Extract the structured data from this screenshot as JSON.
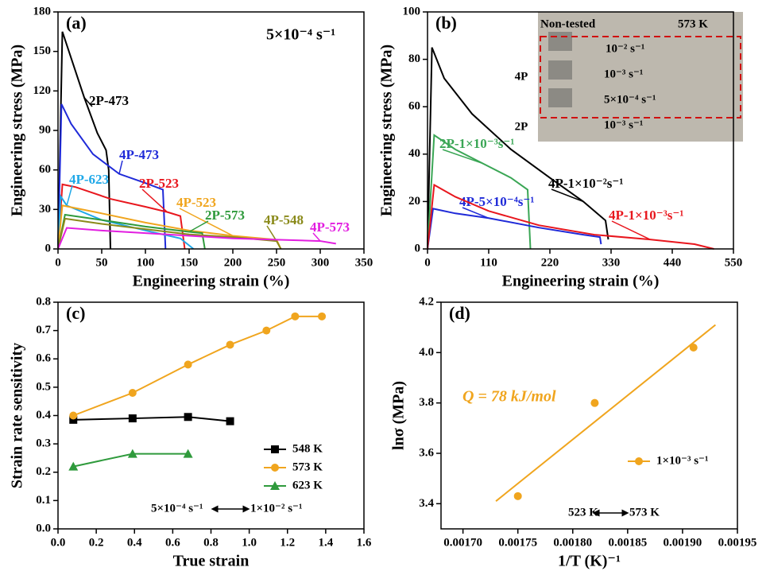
{
  "chart_data": [
    {
      "type": "line",
      "label": "(a)",
      "annotation": "5×10⁻⁴ s⁻¹",
      "x_label": "Engineering strain (%)",
      "y_label": "Engineering stress (MPa)",
      "xlim": [
        0,
        350
      ],
      "xticks": [
        0,
        50,
        100,
        150,
        200,
        250,
        300,
        350
      ],
      "ylim": [
        0,
        180
      ],
      "yticks": [
        0,
        30,
        60,
        90,
        120,
        150,
        180
      ],
      "series": [
        {
          "name": "2P-473",
          "color": "#000000",
          "x": [
            0,
            5,
            15,
            30,
            45,
            55,
            58,
            60
          ],
          "values": [
            0,
            165,
            145,
            115,
            88,
            75,
            60,
            0
          ]
        },
        {
          "name": "4P-473",
          "color": "#1f2ad8",
          "x": [
            0,
            4,
            15,
            40,
            70,
            100,
            120,
            123
          ],
          "values": [
            0,
            110,
            95,
            72,
            57,
            50,
            45,
            0
          ]
        },
        {
          "name": "2P-523",
          "color": "#e8161d",
          "x": [
            0,
            5,
            20,
            60,
            100,
            125,
            140,
            145
          ],
          "values": [
            0,
            49,
            47,
            38,
            32,
            28,
            25,
            0
          ]
        },
        {
          "name": "4P-623",
          "color": "#1fa8e8",
          "x": [
            0,
            3,
            10,
            50,
            100,
            140,
            155
          ],
          "values": [
            0,
            40,
            33,
            22,
            14,
            8,
            0
          ]
        },
        {
          "name": "4P-523",
          "color": "#f0a51e",
          "x": [
            0,
            5,
            50,
            100,
            150,
            200,
            250,
            255
          ],
          "values": [
            0,
            33,
            27,
            20,
            14,
            10,
            7,
            0
          ]
        },
        {
          "name": "2P-573",
          "color": "#2f9a3c",
          "x": [
            0,
            8,
            50,
            100,
            150,
            165,
            168
          ],
          "values": [
            0,
            26,
            22,
            17,
            13,
            12,
            0
          ]
        },
        {
          "name": "4P-548",
          "color": "#8a8a1a",
          "x": [
            0,
            8,
            50,
            100,
            150,
            200,
            250,
            255
          ],
          "values": [
            0,
            23,
            19,
            15,
            11,
            9,
            6,
            0
          ]
        },
        {
          "name": "4P-573",
          "color": "#e21ee0",
          "x": [
            0,
            10,
            50,
            100,
            200,
            300,
            318
          ],
          "values": [
            0,
            16,
            14,
            12,
            8,
            6,
            4
          ]
        }
      ]
    },
    {
      "type": "line",
      "label": "(b)",
      "x_label": "Engineering strain (%)",
      "y_label": "Engineering stress (MPa)",
      "xlim": [
        0,
        550
      ],
      "xticks": [
        0,
        110,
        220,
        330,
        440,
        550
      ],
      "ylim": [
        0,
        100
      ],
      "yticks": [
        0,
        20,
        40,
        60,
        80,
        100
      ],
      "inset_labels": [
        "Non-tested",
        "573 K",
        "10⁻² s⁻¹",
        "10⁻³ s⁻¹",
        "5×10⁻⁴ s⁻¹",
        "10⁻³ s⁻¹",
        "4P",
        "2P"
      ],
      "series": [
        {
          "name": "4P-1×10⁻²s⁻¹",
          "color": "#000000",
          "x": [
            0,
            8,
            30,
            80,
            150,
            220,
            280,
            320,
            325
          ],
          "values": [
            0,
            85,
            72,
            57,
            42,
            30,
            20,
            12,
            4
          ]
        },
        {
          "name": "2P-1×10⁻³s⁻¹",
          "color": "#3aa655",
          "x": [
            0,
            12,
            50,
            100,
            150,
            180,
            185
          ],
          "values": [
            0,
            48,
            42,
            36,
            30,
            25,
            0
          ]
        },
        {
          "name": "4P-5×10⁻⁴s⁻¹",
          "color": "#1f2ad8",
          "x": [
            0,
            10,
            50,
            110,
            200,
            280,
            310,
            312
          ],
          "values": [
            0,
            17,
            15,
            13,
            9,
            6,
            5,
            2
          ]
        },
        {
          "name": "4P-1×10⁻³s⁻¹",
          "color": "#e8161d",
          "x": [
            0,
            12,
            50,
            110,
            200,
            300,
            400,
            480,
            515
          ],
          "values": [
            0,
            27,
            22,
            16,
            10,
            6,
            4,
            2,
            0
          ]
        }
      ]
    },
    {
      "type": "line",
      "label": "(c)",
      "annotation": [
        "5×10⁻⁴ s⁻¹",
        "1×10⁻² s⁻¹"
      ],
      "x_label": "True strain",
      "y_label": "Strain rate sensitivity",
      "xlim": [
        0,
        1.6
      ],
      "xticks": [
        {
          "value": 0,
          "label": "0.0"
        },
        0.2,
        0.4,
        0.6,
        0.8,
        {
          "value": 1,
          "label": "1.0"
        },
        1.2,
        1.4,
        1.6
      ],
      "ylim": [
        0,
        0.8
      ],
      "yticks": [
        {
          "value": 0,
          "label": "0.0"
        },
        0.1,
        0.2,
        0.3,
        0.4,
        0.5,
        0.6,
        0.7,
        0.8
      ],
      "series": [
        {
          "name": "548 K",
          "color": "#000000",
          "marker": "square",
          "x": [
            0.08,
            0.39,
            0.68,
            0.9
          ],
          "values": [
            0.385,
            0.39,
            0.395,
            0.38
          ]
        },
        {
          "name": "573 K",
          "color": "#f0a51e",
          "marker": "circle",
          "x": [
            0.08,
            0.39,
            0.68,
            0.9,
            1.09,
            1.24,
            1.38
          ],
          "values": [
            0.4,
            0.48,
            0.58,
            0.65,
            0.7,
            0.75,
            0.75
          ]
        },
        {
          "name": "623 K",
          "color": "#2f9a3c",
          "marker": "triangle",
          "x": [
            0.08,
            0.39,
            0.68
          ],
          "values": [
            0.22,
            0.265,
            0.265
          ]
        }
      ]
    },
    {
      "type": "scatter",
      "label": "(d)",
      "annotation": [
        "523 K",
        "573 K"
      ],
      "equation": "Q = 78 kJ/mol",
      "x_label": "1/T (K)⁻¹",
      "y_label": "lnσ (MPa)",
      "xlim": [
        0.00168,
        0.00195
      ],
      "xticks": [
        {
          "value": 0.0017,
          "label": "0.00170"
        },
        0.00175,
        {
          "value": 0.0018,
          "label": "0.00180"
        },
        0.00185,
        {
          "value": 0.0019,
          "label": "0.00190"
        },
        0.00195
      ],
      "ylim": [
        3.3,
        4.2
      ],
      "yticks": [
        3.4,
        3.6,
        3.8,
        {
          "value": 4,
          "label": "4.0"
        },
        4.2
      ],
      "series": [
        {
          "name": "1×10⁻³ s⁻¹",
          "color": "#f0a51e",
          "marker": "circle",
          "x": [
            0.00175,
            0.00182,
            0.00191
          ],
          "values": [
            3.43,
            3.8,
            4.02
          ]
        }
      ],
      "fit": {
        "color": "#f0a51e",
        "x": [
          0.00173,
          0.00193
        ],
        "values": [
          3.41,
          4.11
        ]
      }
    }
  ]
}
